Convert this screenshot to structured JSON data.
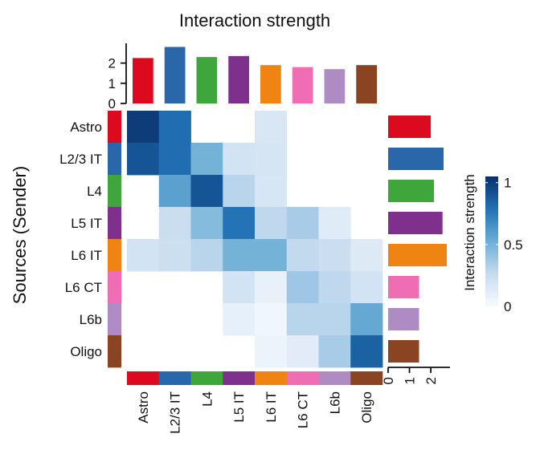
{
  "chart_data": {
    "type": "heatmap",
    "title": "Interaction strength",
    "ylabel": "Sources (Sender)",
    "xlabel": "",
    "senders": [
      "Astro",
      "L2/3 IT",
      "L4",
      "L5 IT",
      "L6 IT",
      "L6 CT",
      "L6b",
      "Oligo"
    ],
    "receivers": [
      "Astro",
      "L2/3 IT",
      "L4",
      "L5 IT",
      "L6 IT",
      "L6 CT",
      "L6b",
      "Oligo"
    ],
    "group_colors": [
      "#dc0a1e",
      "#2a66aa",
      "#3fa63c",
      "#7f2f8c",
      "#ef8412",
      "#ef6db3",
      "#ae8bc3",
      "#8b4421"
    ],
    "matrix": [
      [
        1.0,
        0.8,
        null,
        null,
        0.16,
        null,
        null,
        null
      ],
      [
        0.9,
        0.8,
        0.5,
        0.2,
        0.18,
        null,
        null,
        null
      ],
      [
        null,
        0.58,
        0.9,
        0.3,
        0.17,
        null,
        null,
        null
      ],
      [
        null,
        0.24,
        0.45,
        0.78,
        0.28,
        0.35,
        0.13,
        null
      ],
      [
        0.2,
        0.23,
        0.3,
        0.5,
        0.5,
        0.27,
        0.24,
        0.14
      ],
      [
        null,
        null,
        null,
        0.2,
        0.08,
        0.38,
        0.28,
        0.2
      ],
      [
        null,
        null,
        null,
        0.09,
        0.04,
        0.3,
        0.3,
        0.55
      ],
      [
        null,
        null,
        null,
        null,
        0.06,
        0.12,
        0.35,
        0.85
      ]
    ],
    "incoming_strength": [
      2.25,
      2.8,
      2.3,
      2.35,
      1.9,
      1.8,
      1.7,
      1.9
    ],
    "outgoing_strength": [
      2.0,
      2.6,
      2.15,
      2.55,
      2.75,
      1.45,
      1.45,
      1.45
    ],
    "top_axis": {
      "ylim": [
        0,
        2.9
      ],
      "ticks": [
        0,
        1,
        2
      ],
      "tick_labels": [
        "0",
        "1",
        "2"
      ]
    },
    "right_axis": {
      "xlim": [
        0,
        2.9
      ],
      "ticks": [
        0,
        1,
        2
      ],
      "tick_labels": [
        "0",
        "1",
        "2"
      ]
    },
    "legend": {
      "title": "Interaction strength",
      "range": [
        0,
        1.05
      ],
      "ticks": [
        0,
        0.5,
        1
      ],
      "tick_labels": [
        "0",
        "0.5",
        "1"
      ],
      "color_low": "#f7fbff",
      "color_high": "#08306b"
    }
  }
}
